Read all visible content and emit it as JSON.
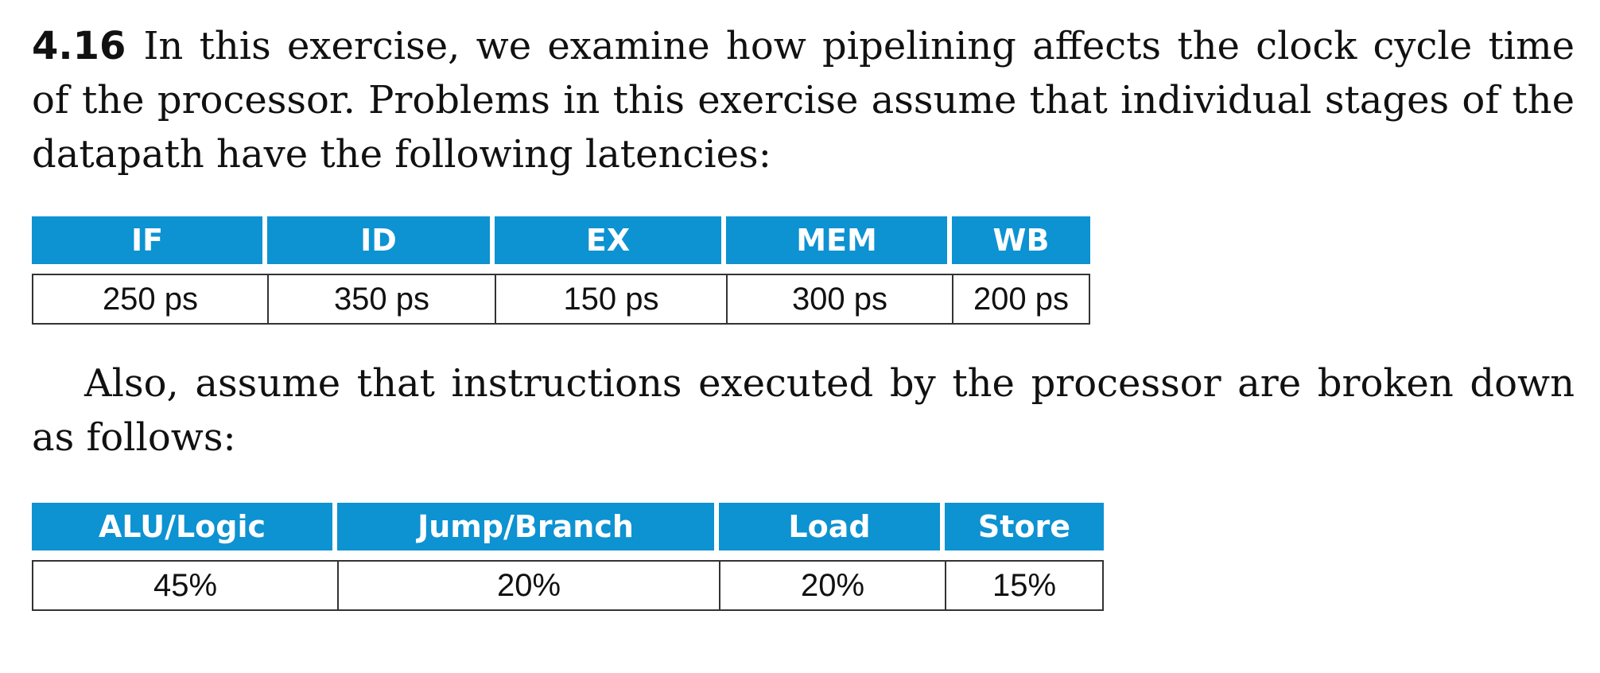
{
  "exercise": {
    "number": "4.16",
    "intro": "In this exercise, we examine how pipelining affects the clock cycle time of the processor. Problems in this exercise assume that individual stages of the datapath have the following latencies:",
    "followup": "Also, assume that instructions executed by the processor are broken down as follows:"
  },
  "latency_table": {
    "headers": [
      "IF",
      "ID",
      "EX",
      "MEM",
      "WB"
    ],
    "values": [
      "250 ps",
      "350 ps",
      "150 ps",
      "300 ps",
      "200 ps"
    ]
  },
  "mix_table": {
    "headers": [
      "ALU/Logic",
      "Jump/Branch",
      "Load",
      "Store"
    ],
    "values": [
      "45%",
      "20%",
      "20%",
      "15%"
    ]
  },
  "colors": {
    "header_bg": "#0d92d2",
    "header_text": "#ffffff",
    "border": "#333333"
  }
}
